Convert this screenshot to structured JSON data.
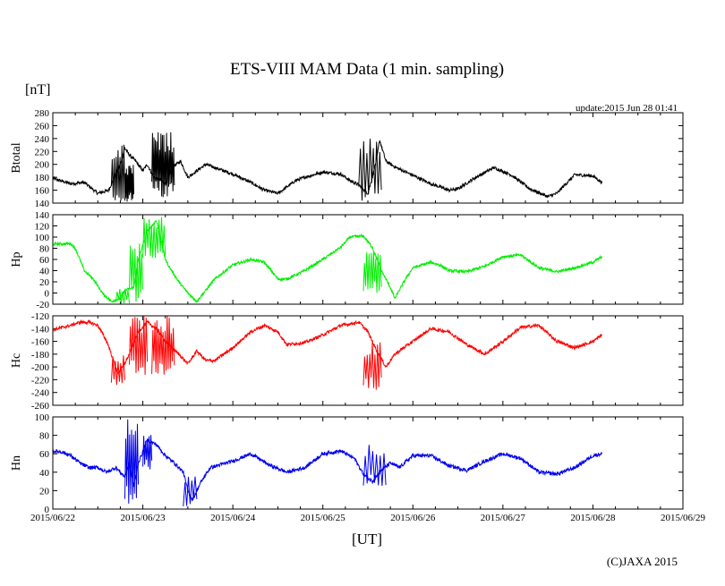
{
  "chart_data": {
    "type": "line",
    "title": "ETS-VIII MAM Data (1 min. sampling)",
    "unit": "[nT]",
    "update": "update:2015 Jun 28 01:41",
    "xlabel": "[UT]",
    "credit": "(C)JAXA 2015",
    "x_range": [
      0,
      7
    ],
    "x_ticks": [
      "2015/06/22",
      "2015/06/23",
      "2015/06/24",
      "2015/06/25",
      "2015/06/26",
      "2015/06/27",
      "2015/06/28",
      "2015/06/29"
    ],
    "panels": [
      {
        "name": "Btotal",
        "color": "#000000",
        "ylim": [
          140,
          280
        ],
        "yticks": [
          280,
          260,
          240,
          220,
          200,
          180,
          160,
          140
        ],
        "noise": 2.5,
        "x": [
          0,
          0.2,
          0.35,
          0.5,
          0.62,
          0.75,
          0.8,
          0.85,
          0.92,
          1.0,
          1.05,
          1.12,
          1.2,
          1.25,
          1.3,
          1.35,
          1.42,
          1.5,
          1.6,
          1.7,
          1.8,
          2.0,
          2.2,
          2.35,
          2.5,
          2.6,
          2.7,
          2.8,
          3.0,
          3.2,
          3.3,
          3.4,
          3.5,
          3.55,
          3.6,
          3.63,
          3.7,
          3.8,
          4.0,
          4.2,
          4.3,
          4.4,
          4.5,
          4.7,
          4.9,
          5.1,
          5.3,
          5.5,
          5.6,
          5.7,
          5.8,
          6.0,
          6.1
        ],
        "y": [
          178,
          170,
          172,
          155,
          160,
          200,
          225,
          215,
          205,
          190,
          200,
          180,
          175,
          170,
          185,
          198,
          205,
          180,
          190,
          200,
          195,
          185,
          172,
          160,
          155,
          165,
          175,
          180,
          188,
          185,
          175,
          168,
          155,
          180,
          210,
          238,
          205,
          196,
          183,
          170,
          165,
          160,
          162,
          180,
          195,
          183,
          162,
          150,
          155,
          170,
          184,
          182,
          172
        ],
        "spikes": [
          {
            "x0": 0.65,
            "x1": 0.8,
            "min": 140,
            "max": 232,
            "n": 14
          },
          {
            "x0": 0.8,
            "x1": 0.9,
            "min": 140,
            "max": 200,
            "n": 16
          },
          {
            "x0": 1.1,
            "x1": 1.35,
            "min": 145,
            "max": 250,
            "n": 32
          },
          {
            "x0": 3.4,
            "x1": 3.65,
            "min": 140,
            "max": 245,
            "n": 14
          }
        ]
      },
      {
        "name": "Hp",
        "color": "#00ee00",
        "ylim": [
          -20,
          140
        ],
        "yticks": [
          140,
          120,
          100,
          80,
          60,
          40,
          20,
          0,
          -20
        ],
        "noise": 2.5,
        "x": [
          0,
          0.2,
          0.25,
          0.35,
          0.45,
          0.55,
          0.65,
          0.75,
          0.8,
          0.9,
          0.95,
          1.05,
          1.15,
          1.25,
          1.3,
          1.4,
          1.5,
          1.6,
          1.8,
          2.0,
          2.2,
          2.35,
          2.5,
          2.6,
          2.8,
          3.0,
          3.2,
          3.3,
          3.45,
          3.55,
          3.65,
          3.75,
          3.8,
          3.9,
          4.0,
          4.2,
          4.3,
          4.4,
          4.6,
          4.8,
          5.0,
          5.2,
          5.4,
          5.6,
          5.8,
          6.0,
          6.1
        ],
        "y": [
          88,
          88,
          80,
          40,
          25,
          0,
          -15,
          -10,
          5,
          10,
          60,
          110,
          130,
          60,
          45,
          20,
          0,
          -15,
          25,
          50,
          60,
          55,
          25,
          25,
          40,
          60,
          82,
          100,
          102,
          82,
          40,
          10,
          -10,
          20,
          45,
          55,
          50,
          40,
          38,
          48,
          65,
          68,
          45,
          38,
          45,
          55,
          65
        ],
        "spikes": [
          {
            "x0": 0.7,
            "x1": 0.85,
            "min": -20,
            "max": 10,
            "n": 10
          },
          {
            "x0": 0.85,
            "x1": 1.0,
            "min": -20,
            "max": 90,
            "n": 12
          },
          {
            "x0": 1.0,
            "x1": 1.25,
            "min": 60,
            "max": 140,
            "n": 18
          },
          {
            "x0": 3.45,
            "x1": 3.65,
            "min": 0,
            "max": 75,
            "n": 16
          }
        ]
      },
      {
        "name": "Hc",
        "color": "#ff0000",
        "ylim": [
          -260,
          -120
        ],
        "yticks": [
          -120,
          -140,
          -160,
          -180,
          -200,
          -220,
          -240,
          -260
        ],
        "noise": 2.5,
        "x": [
          0,
          0.2,
          0.3,
          0.4,
          0.5,
          0.6,
          0.65,
          0.72,
          0.78,
          0.85,
          0.95,
          1.05,
          1.15,
          1.25,
          1.4,
          1.5,
          1.6,
          1.7,
          1.8,
          2.0,
          2.2,
          2.35,
          2.5,
          2.6,
          2.8,
          3.0,
          3.2,
          3.4,
          3.5,
          3.6,
          3.7,
          3.8,
          4.0,
          4.2,
          4.4,
          4.6,
          4.8,
          5.0,
          5.2,
          5.4,
          5.6,
          5.8,
          6.0,
          6.1
        ],
        "y": [
          -142,
          -135,
          -130,
          -130,
          -135,
          -160,
          -180,
          -210,
          -200,
          -180,
          -145,
          -130,
          -140,
          -160,
          -180,
          -195,
          -175,
          -190,
          -190,
          -170,
          -145,
          -135,
          -145,
          -165,
          -162,
          -150,
          -135,
          -130,
          -145,
          -175,
          -200,
          -180,
          -160,
          -140,
          -145,
          -165,
          -180,
          -160,
          -138,
          -135,
          -160,
          -170,
          -160,
          -150
        ],
        "spikes": [
          {
            "x0": 0.65,
            "x1": 0.8,
            "min": -230,
            "max": -180,
            "n": 10
          },
          {
            "x0": 0.85,
            "x1": 1.05,
            "min": -220,
            "max": -120,
            "n": 16
          },
          {
            "x0": 1.1,
            "x1": 1.35,
            "min": -215,
            "max": -120,
            "n": 22
          },
          {
            "x0": 3.45,
            "x1": 3.65,
            "min": -240,
            "max": -160,
            "n": 14
          }
        ]
      },
      {
        "name": "Hn",
        "color": "#0000ee",
        "ylim": [
          0,
          100
        ],
        "yticks": [
          100,
          80,
          60,
          40,
          20,
          0
        ],
        "noise": 2,
        "x": [
          0,
          0.1,
          0.2,
          0.3,
          0.4,
          0.5,
          0.6,
          0.7,
          0.75,
          0.8,
          0.85,
          0.9,
          0.95,
          1.05,
          1.15,
          1.25,
          1.35,
          1.45,
          1.5,
          1.55,
          1.65,
          1.75,
          2.0,
          2.2,
          2.4,
          2.6,
          2.8,
          3.0,
          3.2,
          3.35,
          3.45,
          3.55,
          3.65,
          3.75,
          3.85,
          4.0,
          4.2,
          4.4,
          4.6,
          4.8,
          5.0,
          5.2,
          5.4,
          5.6,
          5.8,
          6.0,
          6.1
        ],
        "y": [
          63,
          62,
          58,
          50,
          45,
          45,
          40,
          45,
          40,
          35,
          50,
          25,
          50,
          75,
          70,
          58,
          50,
          40,
          20,
          10,
          30,
          45,
          52,
          60,
          48,
          40,
          45,
          60,
          63,
          55,
          38,
          30,
          42,
          50,
          45,
          58,
          58,
          47,
          42,
          52,
          60,
          55,
          40,
          38,
          45,
          58,
          60
        ],
        "spikes": [
          {
            "x0": 0.8,
            "x1": 0.95,
            "min": 0,
            "max": 100,
            "n": 14
          },
          {
            "x0": 1.0,
            "x1": 1.1,
            "min": 40,
            "max": 85,
            "n": 10
          },
          {
            "x0": 1.45,
            "x1": 1.6,
            "min": 0,
            "max": 40,
            "n": 8
          },
          {
            "x0": 3.45,
            "x1": 3.7,
            "min": 25,
            "max": 70,
            "n": 12
          }
        ]
      }
    ]
  }
}
